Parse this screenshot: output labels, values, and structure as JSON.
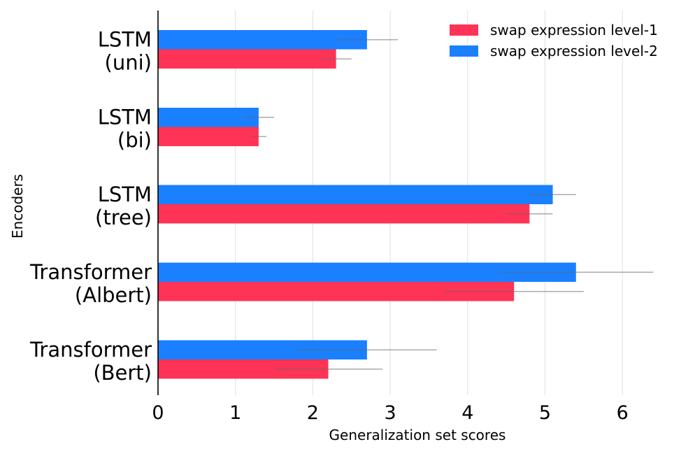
{
  "chart_data": {
    "type": "bar",
    "orientation": "horizontal",
    "xlabel": "Generalization set scores",
    "ylabel": "Encoders",
    "xlim": [
      0,
      7
    ],
    "x_ticks": [
      "0",
      "1",
      "2",
      "3",
      "4",
      "5",
      "6"
    ],
    "grid": "vertical",
    "legend_position": "top-right",
    "categories": [
      [
        "LSTM",
        "(uni)"
      ],
      [
        "LSTM",
        "(bi)"
      ],
      [
        "LSTM",
        "(tree)"
      ],
      [
        "Transformer",
        "(Albert)"
      ],
      [
        "Transformer",
        "(Bert)"
      ]
    ],
    "series": [
      {
        "name": "swap expression level-1",
        "color": "#ff3355",
        "values": [
          2.3,
          1.3,
          4.8,
          4.6,
          2.2
        ],
        "error_low": [
          2.1,
          1.2,
          4.5,
          3.7,
          1.5
        ],
        "error_high": [
          2.5,
          1.4,
          5.1,
          5.5,
          2.9
        ]
      },
      {
        "name": "swap expression level-2",
        "color": "#1a80ff",
        "values": [
          2.7,
          1.3,
          5.1,
          5.4,
          2.7
        ],
        "error_low": [
          2.3,
          1.1,
          4.8,
          4.4,
          1.8
        ],
        "error_high": [
          3.1,
          1.5,
          5.4,
          6.4,
          3.6
        ]
      }
    ]
  }
}
